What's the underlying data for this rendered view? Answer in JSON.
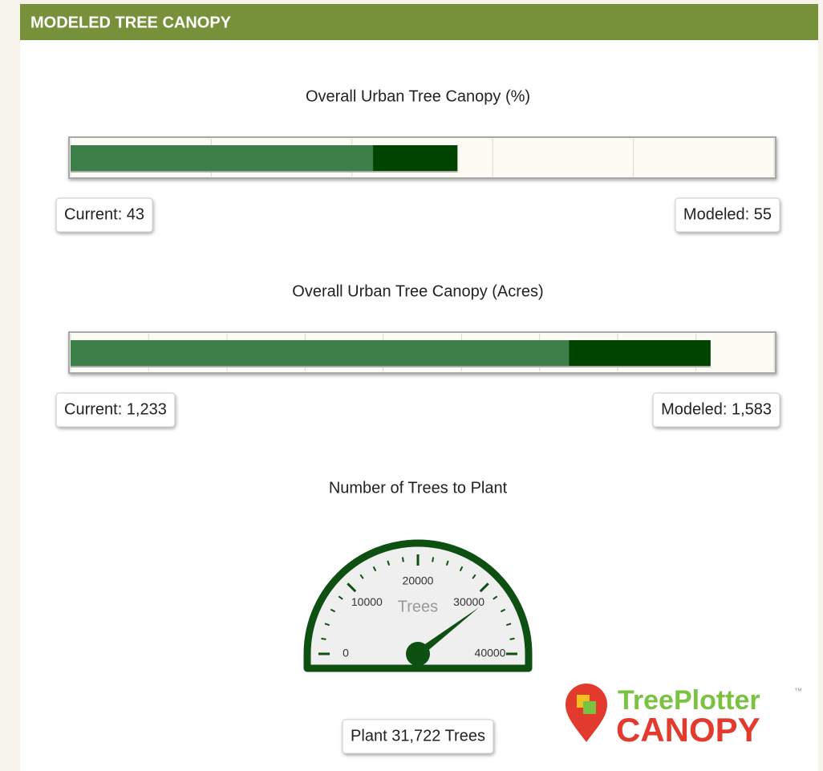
{
  "header": {
    "title": "MODELED TREE CANOPY"
  },
  "chart_data": [
    {
      "type": "bullet",
      "title": "Overall Urban Tree Canopy (%)",
      "xlim": [
        0,
        100
      ],
      "xticks": [
        0,
        20,
        40,
        60,
        80,
        100
      ],
      "values": [
        43,
        55
      ],
      "value_labels": [
        "Current: 43",
        "Modeled: 55"
      ],
      "colors": [
        "#3c7f48",
        "#004400"
      ]
    },
    {
      "type": "bullet",
      "title": "Overall Urban Tree Canopy (Acres)",
      "xlim": [
        0,
        1740
      ],
      "xticks": [
        0,
        193,
        387,
        580,
        773,
        967,
        1160,
        1353,
        1547,
        1740
      ],
      "values": [
        1233,
        1583
      ],
      "value_labels": [
        "Current: 1,233",
        "Modeled: 1,583"
      ],
      "colors": [
        "#3c7f48",
        "#004400"
      ]
    },
    {
      "type": "gauge",
      "title": "Number of Trees to Plant",
      "unit_label": "Trees",
      "xlim": [
        0,
        40000
      ],
      "xticks": [
        0,
        10000,
        20000,
        30000,
        40000
      ],
      "minor_ticks": [
        2000,
        4000,
        6000,
        8000,
        12000,
        14000,
        16000,
        18000,
        22000,
        24000,
        26000,
        28000,
        32000,
        34000,
        36000,
        38000
      ],
      "value": 31722,
      "value_label": "Plant 31,722 Trees",
      "color": "#0e4f12"
    }
  ],
  "logo": {
    "name": "TreePlotter",
    "trademark": "™",
    "product": "CANOPY"
  }
}
